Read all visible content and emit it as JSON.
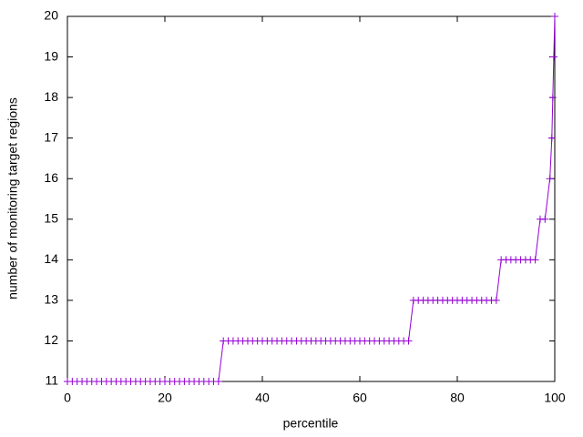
{
  "chart_data": {
    "type": "line",
    "xlabel": "percentile",
    "ylabel": "number of monitoring target regions",
    "x": [
      0,
      1,
      2,
      3,
      4,
      5,
      6,
      7,
      8,
      9,
      10,
      11,
      12,
      13,
      14,
      15,
      16,
      17,
      18,
      19,
      20,
      21,
      22,
      23,
      24,
      25,
      26,
      27,
      28,
      29,
      30,
      31,
      32,
      33,
      34,
      35,
      36,
      37,
      38,
      39,
      40,
      41,
      42,
      43,
      44,
      45,
      46,
      47,
      48,
      49,
      50,
      51,
      52,
      53,
      54,
      55,
      56,
      57,
      58,
      59,
      60,
      61,
      62,
      63,
      64,
      65,
      66,
      67,
      68,
      69,
      70,
      71,
      72,
      73,
      74,
      75,
      76,
      77,
      78,
      79,
      80,
      81,
      82,
      83,
      84,
      85,
      86,
      87,
      88,
      89,
      90,
      91,
      92,
      93,
      94,
      95,
      96,
      97,
      98,
      99,
      99.4,
      99.6,
      99.8,
      100
    ],
    "series": [
      {
        "color": "#9400d3",
        "values": [
          11,
          11,
          11,
          11,
          11,
          11,
          11,
          11,
          11,
          11,
          11,
          11,
          11,
          11,
          11,
          11,
          11,
          11,
          11,
          11,
          11,
          11,
          11,
          11,
          11,
          11,
          11,
          11,
          11,
          11,
          11,
          11,
          12,
          12,
          12,
          12,
          12,
          12,
          12,
          12,
          12,
          12,
          12,
          12,
          12,
          12,
          12,
          12,
          12,
          12,
          12,
          12,
          12,
          12,
          12,
          12,
          12,
          12,
          12,
          12,
          12,
          12,
          12,
          12,
          12,
          12,
          12,
          12,
          12,
          12,
          12,
          13,
          13,
          13,
          13,
          13,
          13,
          13,
          13,
          13,
          13,
          13,
          13,
          13,
          13,
          13,
          13,
          13,
          13,
          14,
          14,
          14,
          14,
          14,
          14,
          14,
          14,
          15,
          15,
          16,
          17,
          18,
          19,
          20
        ]
      }
    ],
    "xlim": [
      0,
      100
    ],
    "xticks": [
      0,
      20,
      40,
      60,
      80,
      100
    ],
    "ylim": [
      11,
      20
    ],
    "yticks": [
      11,
      12,
      13,
      14,
      15,
      16,
      17,
      18,
      19,
      20
    ]
  }
}
